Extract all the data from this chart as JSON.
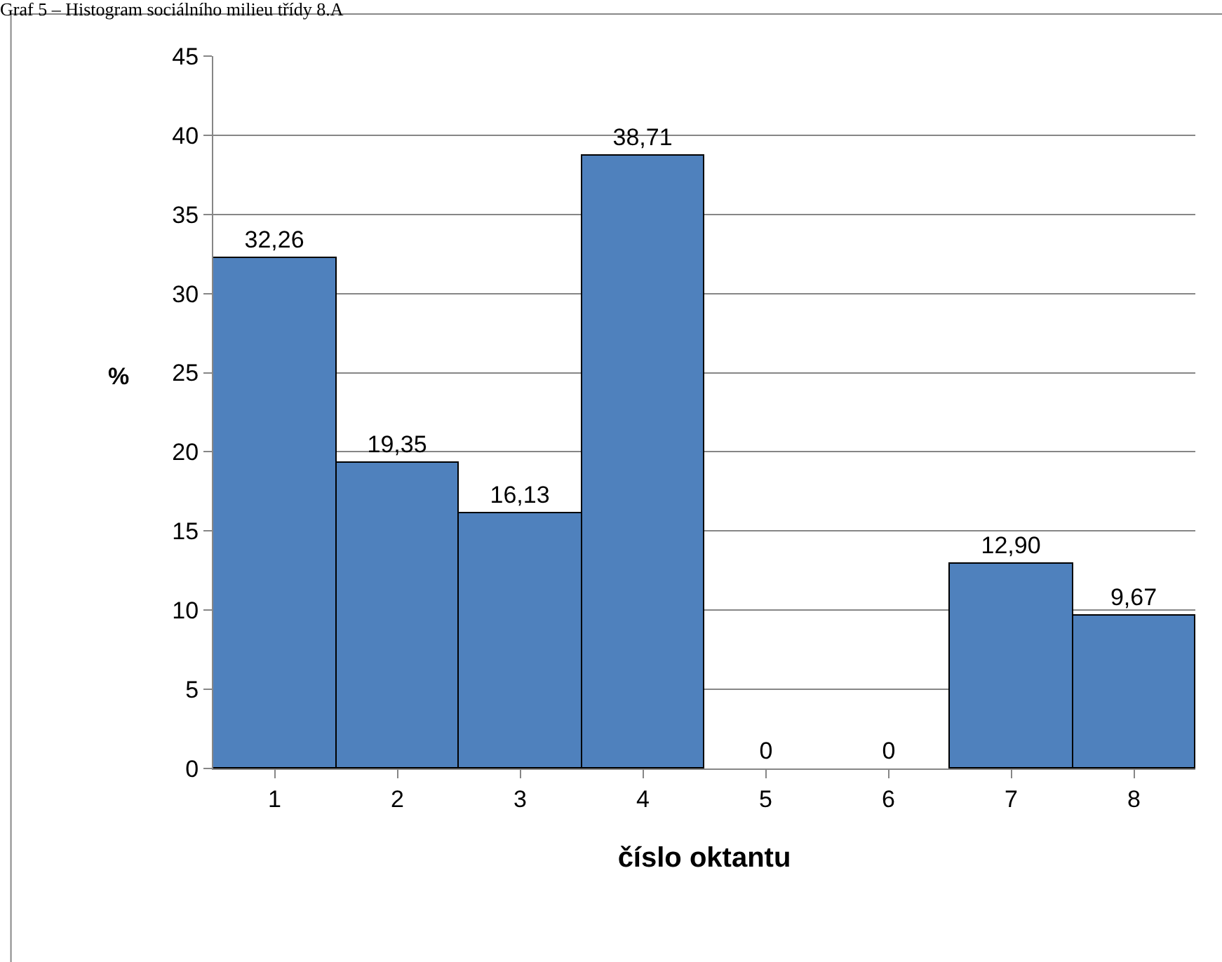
{
  "chart_data": {
    "type": "bar",
    "title": "Graf 5 – Histogram sociálního milieu třídy 8.A",
    "xlabel": "číslo oktantu",
    "ylabel": "%",
    "categories": [
      "1",
      "2",
      "3",
      "4",
      "5",
      "6",
      "7",
      "8"
    ],
    "values": [
      32.26,
      19.35,
      16.13,
      38.71,
      0,
      0,
      12.9,
      9.67
    ],
    "value_labels": [
      "32,26",
      "19,35",
      "16,13",
      "38,71",
      "0",
      "0",
      "12,90",
      "9,67"
    ],
    "color": "#4f81bd",
    "ylim": [
      0,
      45
    ],
    "yticks": [
      0,
      5,
      10,
      15,
      20,
      25,
      30,
      35,
      40,
      45
    ],
    "grid": "y",
    "legend": false
  }
}
